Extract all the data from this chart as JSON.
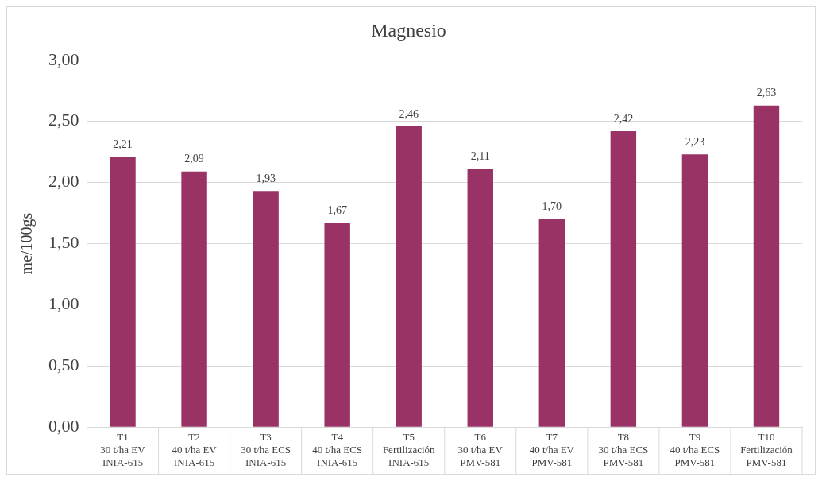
{
  "chart_data": {
    "type": "bar",
    "title": "Magnesio",
    "ylabel": "me/100gs",
    "categories": [
      "T1\n30 t/ha EV\nINIA-615",
      "T2\n40 t/ha EV\nINIA-615",
      "T3\n30 t/ha ECS\nINIA-615",
      "T4\n40 t/ha ECS\nINIA-615",
      "T5\nFertilización\nINIA-615",
      "T6\n30 t/ha EV\nPMV-581",
      "T7\n40 t/ha EV\nPMV-581",
      "T8\n30 t/ha ECS\nPMV-581",
      "T9\n40 t/ha ECS\nPMV-581",
      "T10\nFertilización\nPMV-581"
    ],
    "values": [
      2.21,
      2.09,
      1.93,
      1.67,
      2.46,
      2.11,
      1.7,
      2.42,
      2.23,
      2.63
    ],
    "value_labels": [
      "2,21",
      "2,09",
      "1,93",
      "1,67",
      "2,46",
      "2,11",
      "1,70",
      "2,42",
      "2,23",
      "2,63"
    ],
    "color": "#993366",
    "ylim": [
      0,
      3
    ],
    "yticks": [
      {
        "value": 0,
        "label": "0,00"
      },
      {
        "value": 0.5,
        "label": "0,50"
      },
      {
        "value": 1,
        "label": "1,00"
      },
      {
        "value": 1.5,
        "label": "1,50"
      },
      {
        "value": 2,
        "label": "2,00"
      },
      {
        "value": 2.5,
        "label": "2,50"
      },
      {
        "value": 3,
        "label": "3,00"
      }
    ],
    "grid": "y",
    "legend": false
  }
}
